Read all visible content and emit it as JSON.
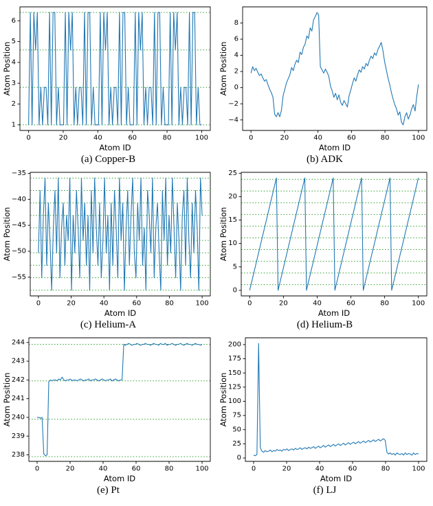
{
  "colors": {
    "series": "#1f77b4",
    "hline": "#2ca02c",
    "axis": "#000000",
    "background": "#ffffff"
  },
  "chart_data": [
    {
      "type": "line",
      "caption": "(a) Copper-B",
      "xlabel": "Atom ID",
      "ylabel": "Atom Position",
      "xlim": [
        -5,
        105
      ],
      "ylim": [
        0.73,
        6.67
      ],
      "x_range": [
        0,
        100
      ],
      "x_ticks": [
        0,
        20,
        40,
        60,
        80,
        100
      ],
      "y_ticks": [
        1,
        2,
        3,
        4,
        5,
        6
      ],
      "hlines": [
        1.0,
        2.8,
        4.6,
        6.4
      ],
      "values": [
        1,
        6.4,
        1,
        6.4,
        4.6,
        6.4,
        1,
        2.8,
        1,
        2.8,
        2.8,
        1,
        6.4,
        1,
        6.4,
        6.4,
        1,
        2.8,
        1,
        1,
        1,
        6.4,
        1,
        6.4,
        4.6,
        6.4,
        1,
        2.8,
        1,
        2.8,
        2.8,
        1,
        6.4,
        1,
        6.4,
        6.4,
        1,
        2.8,
        1,
        1,
        1,
        6.4,
        1,
        6.4,
        4.6,
        6.4,
        1,
        2.8,
        1,
        2.8,
        2.8,
        1,
        6.4,
        1,
        6.4,
        6.4,
        1,
        2.8,
        1,
        1,
        1,
        6.4,
        1,
        6.4,
        4.6,
        6.4,
        1,
        2.8,
        1,
        2.8,
        2.8,
        1,
        6.4,
        1,
        6.4,
        6.4,
        1,
        2.8,
        1,
        1,
        1,
        6.4,
        1,
        6.4,
        4.6,
        6.4,
        1,
        2.8,
        1,
        2.8,
        2.8,
        1,
        6.4,
        1,
        6.4,
        6.4,
        1,
        2.8,
        1,
        1
      ]
    },
    {
      "type": "line",
      "caption": "(b) ADK",
      "xlabel": "Atom ID",
      "ylabel": "Atom Position",
      "xlim": [
        -5,
        105
      ],
      "ylim": [
        -5.3,
        10.0
      ],
      "x_range": [
        0,
        100
      ],
      "x_ticks": [
        0,
        20,
        40,
        60,
        80,
        100
      ],
      "y_ticks": [
        -4,
        -2,
        0,
        2,
        4,
        6,
        8
      ],
      "hlines": [],
      "values": [
        1.8,
        2.6,
        2.1,
        2.4,
        1.9,
        1.5,
        1.7,
        1.2,
        0.8,
        1.0,
        0.4,
        -0.2,
        -0.6,
        -1.2,
        -3.3,
        -3.6,
        -3.1,
        -3.6,
        -2.8,
        -1.0,
        -0.2,
        0.6,
        1.1,
        1.6,
        2.5,
        2.1,
        2.9,
        3.4,
        3.1,
        4.4,
        4.1,
        5.0,
        5.4,
        6.4,
        6.1,
        7.4,
        7.0,
        8.4,
        8.8,
        9.3,
        9.0,
        2.6,
        2.2,
        1.8,
        2.3,
        1.9,
        1.4,
        0.2,
        -0.4,
        -1.2,
        -0.7,
        -1.5,
        -0.9,
        -1.8,
        -2.2,
        -1.6,
        -2.0,
        -2.4,
        -1.0,
        -0.3,
        0.5,
        1.2,
        0.8,
        1.6,
        2.2,
        1.9,
        2.6,
        2.3,
        3.0,
        2.7,
        3.4,
        3.9,
        3.6,
        4.3,
        4.0,
        4.7,
        5.1,
        5.6,
        4.6,
        3.2,
        2.2,
        1.2,
        0.4,
        -0.6,
        -1.4,
        -2.1,
        -2.6,
        -3.4,
        -3.0,
        -4.3,
        -4.6,
        -3.6,
        -3.1,
        -3.9,
        -3.4,
        -2.6,
        -2.1,
        -2.9,
        -1.1,
        0.4
      ]
    },
    {
      "type": "line",
      "caption": "(c) Helium-A",
      "xlabel": "Atom ID",
      "ylabel": "Atom Position",
      "xlim": [
        -5,
        105
      ],
      "ylim": [
        -58.6,
        -34.8
      ],
      "x_range": [
        0,
        100
      ],
      "x_ticks": [
        0,
        20,
        40,
        60,
        80,
        100
      ],
      "y_ticks": [
        -55,
        -50,
        -45,
        -40,
        -35
      ],
      "hlines": [
        -57.5,
        -55.1,
        -52.7,
        -50.3,
        -47.9,
        -45.5,
        -43.1,
        -40.7,
        -38.3,
        -35.9
      ],
      "values": [
        -50.3,
        -38.3,
        -55.1,
        -43.1,
        -35.9,
        -52.7,
        -40.7,
        -47.9,
        -57.5,
        -45.5,
        -38.3,
        -50.3,
        -35.9,
        -55.1,
        -45.5,
        -40.7,
        -52.7,
        -43.1,
        -47.9,
        -35.9,
        -57.5,
        -43.1,
        -50.3,
        -38.3,
        -45.5,
        -55.1,
        -35.9,
        -47.9,
        -40.7,
        -52.7,
        -43.1,
        -57.5,
        -38.3,
        -50.3,
        -35.9,
        -45.5,
        -52.7,
        -40.7,
        -55.1,
        -47.9,
        -35.9,
        -50.3,
        -43.1,
        -57.5,
        -40.7,
        -52.7,
        -38.3,
        -45.5,
        -55.1,
        -35.9,
        -47.9,
        -40.7,
        -57.5,
        -45.5,
        -38.3,
        -52.7,
        -43.1,
        -35.9,
        -50.3,
        -55.1,
        -40.7,
        -47.9,
        -35.9,
        -52.7,
        -45.5,
        -57.5,
        -38.3,
        -43.1,
        -50.3,
        -35.9,
        -55.1,
        -45.5,
        -40.7,
        -50.3,
        -57.5,
        -38.3,
        -47.9,
        -35.9,
        -52.7,
        -43.1,
        -50.3,
        -35.9,
        -45.5,
        -55.1,
        -40.7,
        -47.9,
        -57.5,
        -43.1,
        -38.3,
        -52.7,
        -35.9,
        -47.9,
        -55.1,
        -40.7,
        -50.3,
        -38.3,
        -45.5,
        -57.5,
        -35.9,
        -43.1
      ]
    },
    {
      "type": "line",
      "caption": "(d) Helium-B",
      "xlabel": "Atom ID",
      "ylabel": "Atom Position",
      "xlim": [
        -5,
        105
      ],
      "ylim": [
        -1.2,
        25.2
      ],
      "x_range": [
        0,
        100
      ],
      "x_ticks": [
        0,
        20,
        40,
        60,
        80,
        100
      ],
      "y_ticks": [
        0,
        5,
        10,
        15,
        20,
        25
      ],
      "hlines": [
        1.2,
        3.7,
        6.2,
        8.7,
        11.2,
        13.7,
        16.2,
        18.7,
        21.2,
        23.7
      ],
      "values": [
        0,
        1.5,
        3,
        4.5,
        6,
        7.5,
        9,
        10.5,
        12,
        13.5,
        15,
        16.5,
        18,
        19.5,
        21,
        22.5,
        24,
        0,
        1.5,
        3,
        4.5,
        6,
        7.5,
        9,
        10.5,
        12,
        13.5,
        15,
        16.5,
        18,
        19.5,
        21,
        22.5,
        24,
        0,
        1.5,
        3,
        4.5,
        6,
        7.5,
        9,
        10.5,
        12,
        13.5,
        15,
        16.5,
        18,
        19.5,
        21,
        22.5,
        24,
        0,
        1.5,
        3,
        4.5,
        6,
        7.5,
        9,
        10.5,
        12,
        13.5,
        15,
        16.5,
        18,
        19.5,
        21,
        22.5,
        24,
        0,
        1.5,
        3,
        4.5,
        6,
        7.5,
        9,
        10.5,
        12,
        13.5,
        15,
        16.5,
        18,
        19.5,
        21,
        22.5,
        24,
        0,
        1.5,
        3,
        4.5,
        6,
        7.5,
        9,
        10.5,
        12,
        13.5,
        15,
        16.5,
        18,
        19.5,
        21,
        22.5,
        24
      ]
    },
    {
      "type": "line",
      "caption": "(e) Pt",
      "xlabel": "Atom ID",
      "ylabel": "Atom Position",
      "xlim": [
        -5,
        105
      ],
      "ylim": [
        237.65,
        244.25
      ],
      "x_range": [
        0,
        100
      ],
      "x_ticks": [
        0,
        20,
        40,
        60,
        80,
        100
      ],
      "y_ticks": [
        238,
        239,
        240,
        241,
        242,
        243,
        244
      ],
      "hlines": [
        237.9,
        239.9,
        241.95,
        243.9
      ],
      "values": [
        240.0,
        240.0,
        239.95,
        240.0,
        238.05,
        237.95,
        238.0,
        241.9,
        242.0,
        241.95,
        242.0,
        242.0,
        241.95,
        242.05,
        242.0,
        242.15,
        242.0,
        241.95,
        242.0,
        242.0,
        242.05,
        241.95,
        242.0,
        242.0,
        241.95,
        242.0,
        242.05,
        242.0,
        241.95,
        242.0,
        242.0,
        242.05,
        241.95,
        242.0,
        242.0,
        242.05,
        242.0,
        241.95,
        242.0,
        242.05,
        242.0,
        241.95,
        242.0,
        242.0,
        242.05,
        241.95,
        242.0,
        242.05,
        242.0,
        241.95,
        242.0,
        242.0,
        243.9,
        243.85,
        243.9,
        243.95,
        243.9,
        243.85,
        243.9,
        243.9,
        243.95,
        243.9,
        243.85,
        243.9,
        243.9,
        243.95,
        243.9,
        243.9,
        243.85,
        243.9,
        243.95,
        243.9,
        243.9,
        243.85,
        243.95,
        243.9,
        243.9,
        243.95,
        243.85,
        243.9,
        243.9,
        243.95,
        243.9,
        243.85,
        243.9,
        243.9,
        243.95,
        243.9,
        243.85,
        243.9,
        243.95,
        243.9,
        243.9,
        243.85,
        243.9,
        243.95,
        243.9,
        243.9,
        243.85,
        243.9
      ]
    },
    {
      "type": "line",
      "caption": "(f) LJ",
      "xlabel": "Atom ID",
      "ylabel": "Atom Position",
      "xlim": [
        -5,
        105
      ],
      "ylim": [
        -6.0,
        212.0
      ],
      "x_range": [
        0,
        100
      ],
      "x_ticks": [
        0,
        20,
        40,
        60,
        80,
        100
      ],
      "y_ticks": [
        0,
        25,
        50,
        75,
        100,
        125,
        150,
        175,
        200
      ],
      "hlines": [],
      "values": [
        5,
        4,
        6,
        202,
        18,
        12,
        10,
        13,
        11,
        12,
        14,
        11,
        13,
        12,
        15,
        13,
        14,
        12,
        15,
        14,
        16,
        13,
        15,
        16,
        14,
        17,
        15,
        16,
        18,
        15,
        17,
        18,
        16,
        19,
        17,
        18,
        20,
        17,
        19,
        21,
        18,
        20,
        22,
        19,
        21,
        23,
        20,
        22,
        24,
        21,
        23,
        25,
        22,
        24,
        26,
        23,
        25,
        27,
        24,
        26,
        28,
        25,
        27,
        29,
        26,
        28,
        30,
        27,
        29,
        31,
        28,
        30,
        32,
        29,
        31,
        33,
        30,
        32,
        34,
        31,
        10,
        7,
        9,
        6,
        8,
        5,
        9,
        7,
        6,
        8,
        5,
        9,
        6,
        8,
        7,
        5,
        9,
        6,
        8,
        7
      ]
    }
  ]
}
